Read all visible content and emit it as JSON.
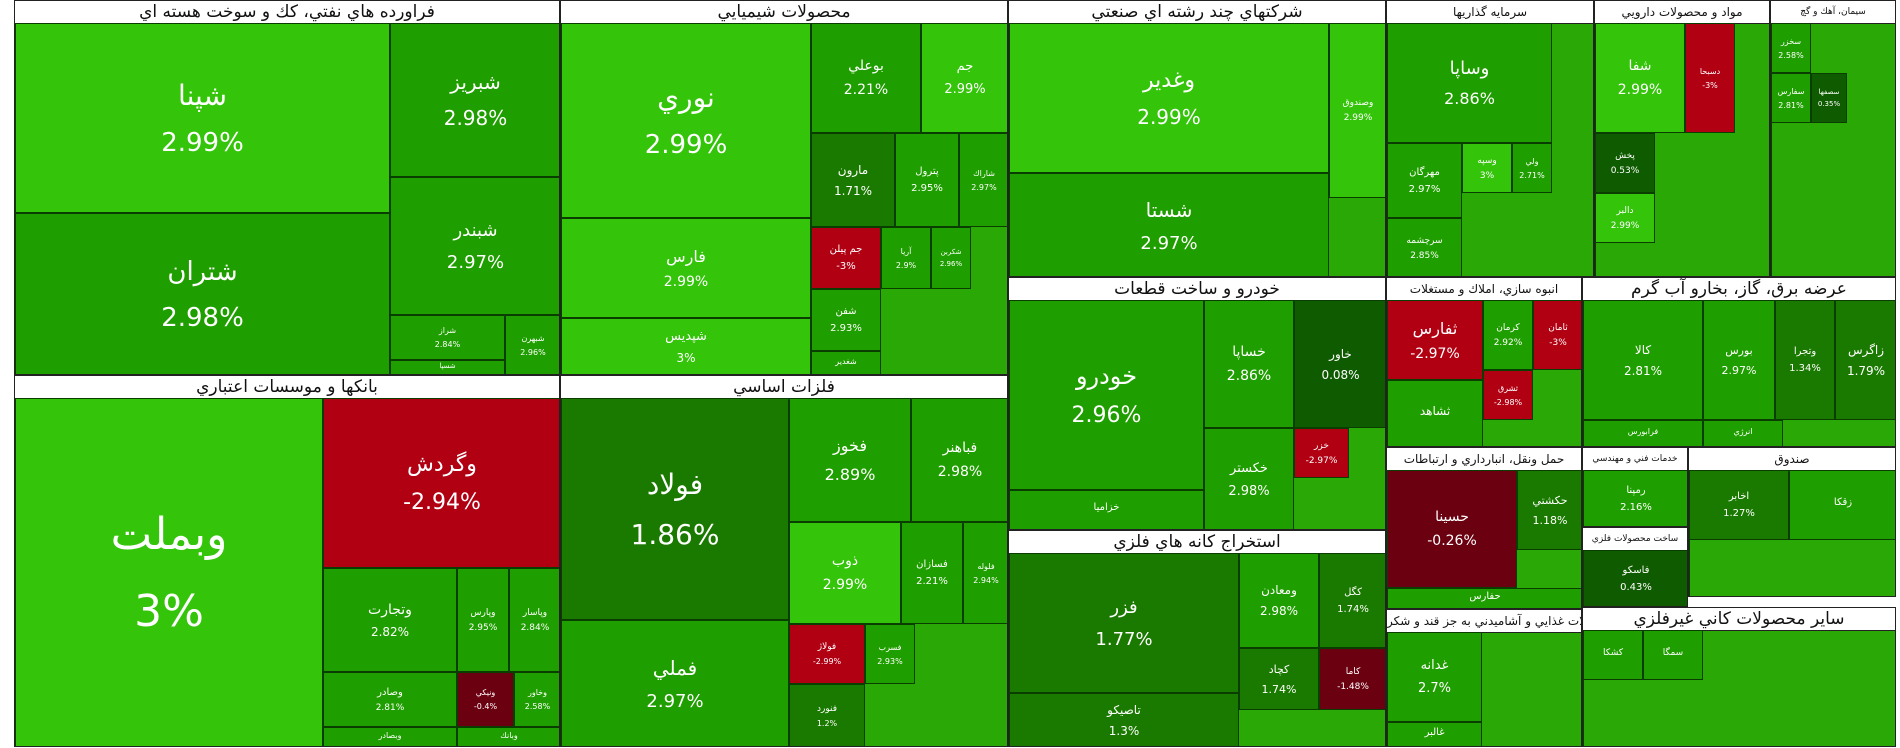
{
  "colors": {
    "strong_green": "#1f9e00",
    "mid_green": "#2aa805",
    "bright_green": "#34c40a",
    "dark_green": "#1a7a00",
    "deep_green": "#0f5c00",
    "red": "#b00012",
    "dark_red": "#6b0010",
    "white": "#ffffff"
  },
  "sectors": [
    {
      "title": "فراورده هاي نفتي، كك و سوخت هسته اي",
      "tiles": [
        {
          "symbol": "شپنا",
          "change": "2.99%"
        },
        {
          "symbol": "شتران",
          "change": "2.98%"
        },
        {
          "symbol": "شبريز",
          "change": "2.98%"
        },
        {
          "symbol": "شبندر",
          "change": "2.97%"
        },
        {
          "symbol": "شراز",
          "change": "2.84%"
        },
        {
          "symbol": "شبهرن",
          "change": "2.96%"
        },
        {
          "symbol": "شسپا",
          "change": ""
        }
      ]
    },
    {
      "title": "محصولات شيميايي",
      "tiles": [
        {
          "symbol": "نوري",
          "change": "2.99%"
        },
        {
          "symbol": "فارس",
          "change": "2.99%"
        },
        {
          "symbol": "شپديس",
          "change": "3%"
        },
        {
          "symbol": "بوعلي",
          "change": "2.21%"
        },
        {
          "symbol": "جم",
          "change": "2.99%"
        },
        {
          "symbol": "مارون",
          "change": "1.71%"
        },
        {
          "symbol": "پترول",
          "change": "2.95%"
        },
        {
          "symbol": "شاراك",
          "change": "2.97%"
        },
        {
          "symbol": "جم پيلن",
          "change": "-3%"
        },
        {
          "symbol": "آريا",
          "change": "2.9%"
        },
        {
          "symbol": "شكربن",
          "change": "2.96%"
        },
        {
          "symbol": "شفن",
          "change": "2.93%"
        },
        {
          "symbol": "شغدير",
          "change": ""
        }
      ]
    },
    {
      "title": "شركتهاي چند رشته اي صنعتي",
      "tiles": [
        {
          "symbol": "وغدير",
          "change": "2.99%"
        },
        {
          "symbol": "شستا",
          "change": "2.97%"
        },
        {
          "symbol": "وصندوق",
          "change": "2.99%"
        }
      ]
    },
    {
      "title": "سرمايه گذاريها",
      "tiles": [
        {
          "symbol": "وساپا",
          "change": "2.86%"
        },
        {
          "symbol": "مهرگان",
          "change": "2.97%"
        },
        {
          "symbol": "وسپه",
          "change": "3%"
        },
        {
          "symbol": "ولي",
          "change": "2.71%"
        },
        {
          "symbol": "سرچشمه",
          "change": "2.85%"
        }
      ]
    },
    {
      "title": "مواد و محصولات دارويي",
      "tiles": [
        {
          "symbol": "شفا",
          "change": "2.99%"
        },
        {
          "symbol": "پخش",
          "change": "0.53%"
        },
        {
          "symbol": "دالبر",
          "change": "2.99%"
        },
        {
          "symbol": "دسبحا",
          "change": "-3%"
        }
      ]
    },
    {
      "title": "سيمان، آهك و گچ",
      "tiles": [
        {
          "symbol": "سخزر",
          "change": "2.58%"
        },
        {
          "symbol": "سفارس",
          "change": "2.81%"
        },
        {
          "symbol": "سصفها",
          "change": "0.35%"
        }
      ]
    },
    {
      "title": "خودرو و ساخت قطعات",
      "tiles": [
        {
          "symbol": "خودرو",
          "change": "2.96%"
        },
        {
          "symbol": "خساپا",
          "change": "2.86%"
        },
        {
          "symbol": "خاور",
          "change": "0.08%"
        },
        {
          "symbol": "خكستر",
          "change": "2.98%"
        },
        {
          "symbol": "خزر",
          "change": "-2.97%"
        },
        {
          "symbol": "خزاميا",
          "change": ""
        }
      ]
    },
    {
      "title": "انبوه سازي، املاك و مستغلات",
      "tiles": [
        {
          "symbol": "ثفارس",
          "change": "-2.97%"
        },
        {
          "symbol": "ثشاهد",
          "change": ""
        },
        {
          "symbol": "كرمان",
          "change": "2.92%"
        },
        {
          "symbol": "ثامان",
          "change": "-3%"
        },
        {
          "symbol": "ثشرق",
          "change": "-2.98%"
        }
      ]
    },
    {
      "title": "بانكها و موسسات اعتباري",
      "tiles": [
        {
          "symbol": "وبملت",
          "change": "3%"
        },
        {
          "symbol": "وگردش",
          "change": "-2.94%"
        },
        {
          "symbol": "وتجارت",
          "change": "2.82%"
        },
        {
          "symbol": "وپارس",
          "change": "2.95%"
        },
        {
          "symbol": "وپاسار",
          "change": "2.84%"
        },
        {
          "symbol": "وصادر",
          "change": "2.81%"
        },
        {
          "symbol": "ونيكي",
          "change": "-0.4%"
        },
        {
          "symbol": "وخاور",
          "change": "2.58%"
        },
        {
          "symbol": "وبصادر",
          "change": ""
        },
        {
          "symbol": "وبانك",
          "change": ""
        }
      ]
    },
    {
      "title": "فلزات اساسي",
      "tiles": [
        {
          "symbol": "فولاد",
          "change": "1.86%"
        },
        {
          "symbol": "فملي",
          "change": "2.97%"
        },
        {
          "symbol": "فخوز",
          "change": "2.89%"
        },
        {
          "symbol": "فباهنر",
          "change": "2.98%"
        },
        {
          "symbol": "ذوب",
          "change": "2.99%"
        },
        {
          "symbol": "فسازان",
          "change": "2.21%"
        },
        {
          "symbol": "فلوله",
          "change": "2.94%"
        },
        {
          "symbol": "فولاژ",
          "change": "-2.99%"
        },
        {
          "symbol": "فسرب",
          "change": "2.93%"
        },
        {
          "symbol": "فنورد",
          "change": "1.2%"
        }
      ]
    },
    {
      "title": "استخراج كانه هاي فلزي",
      "tiles": [
        {
          "symbol": "فزر",
          "change": "1.77%"
        },
        {
          "symbol": "ومعادن",
          "change": "2.98%"
        },
        {
          "symbol": "كگل",
          "change": "1.74%"
        },
        {
          "symbol": "كچاد",
          "change": "1.74%"
        },
        {
          "symbol": "كاما",
          "change": "-1.48%"
        },
        {
          "symbol": "تاصيكو",
          "change": "1.3%"
        }
      ]
    },
    {
      "title": "عرضه برق، گاز، بخارو آب گرم",
      "tiles": [
        {
          "symbol": "كالا",
          "change": "2.81%"
        },
        {
          "symbol": "بورس",
          "change": "2.97%"
        },
        {
          "symbol": "وتجرا",
          "change": "1.34%"
        },
        {
          "symbol": "فرابورس",
          "change": ""
        },
        {
          "symbol": "انرژي",
          "change": ""
        },
        {
          "symbol": "زاگرس",
          "change": "1.79%"
        }
      ]
    },
    {
      "title": "حمل ونقل، انبارداري و ارتباطات",
      "tiles": [
        {
          "symbol": "حسينا",
          "change": "-0.26%"
        },
        {
          "symbol": "حكشتي",
          "change": "1.18%"
        },
        {
          "symbol": "حفارس",
          "change": ""
        }
      ]
    },
    {
      "title": "محصولات غذايي و آشاميدني به جز قند و شكر",
      "tiles": [
        {
          "symbol": "غدانه",
          "change": "2.7%"
        },
        {
          "symbol": "غالبر",
          "change": ""
        }
      ]
    },
    {
      "title": "خدمات فني و مهندسي",
      "tiles": [
        {
          "symbol": "رمپنا",
          "change": "2.16%"
        }
      ]
    },
    {
      "title": "ساخت محصولات فلزي",
      "tiles": [
        {
          "symbol": "فاسكو",
          "change": "0.43%"
        }
      ]
    },
    {
      "title": "صندوق",
      "tiles": [
        {
          "symbol": "اخابر",
          "change": "1.27%"
        },
        {
          "symbol": "زقكا",
          "change": ""
        }
      ]
    },
    {
      "title": "ساير محصولات كاني غيرفلزي",
      "tiles": [
        {
          "symbol": "كشكا",
          "change": ""
        },
        {
          "symbol": "سمگا",
          "change": ""
        }
      ]
    }
  ]
}
